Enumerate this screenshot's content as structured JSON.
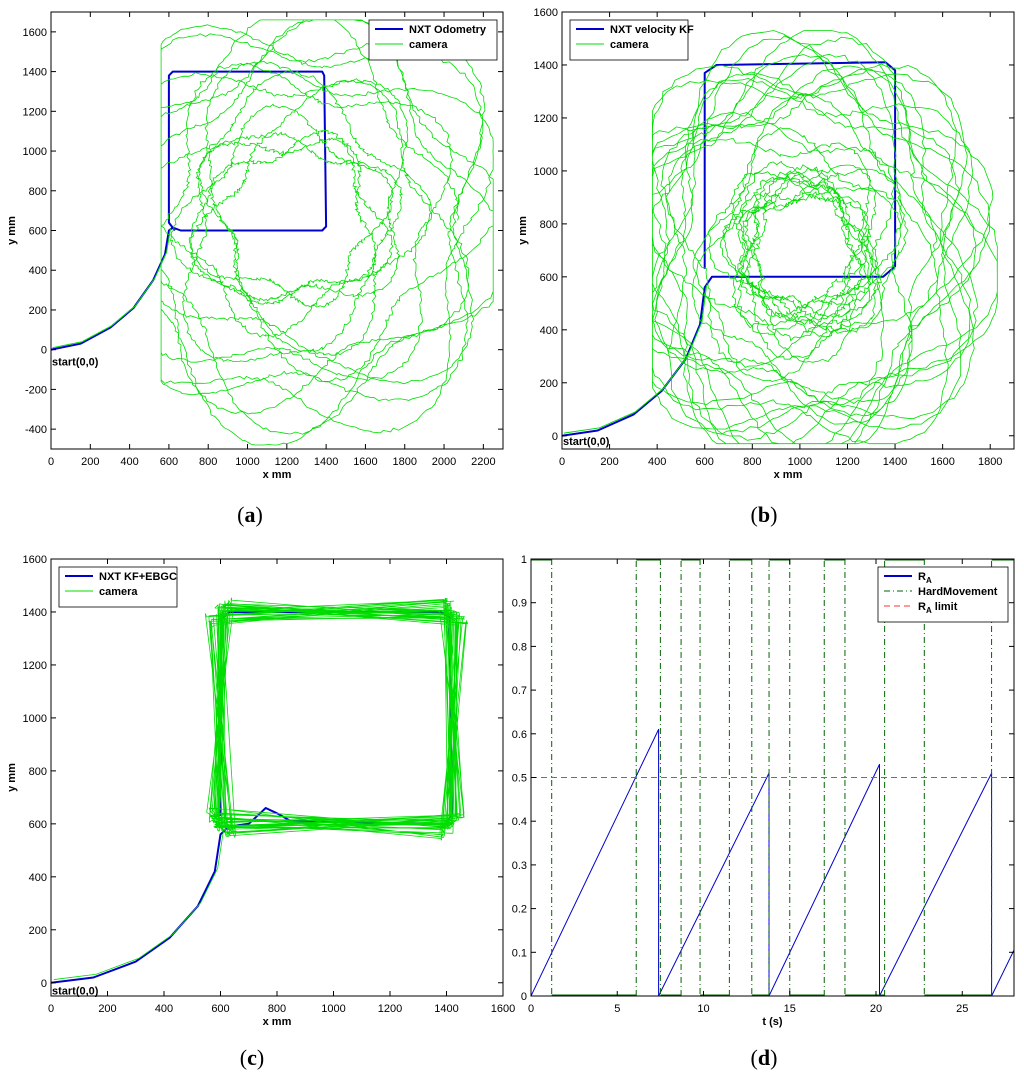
{
  "chart_data": [
    {
      "type": "line",
      "panel_label": "(a)",
      "xlabel": "x mm",
      "ylabel": "y mm",
      "xlim": [
        0,
        2300
      ],
      "ylim": [
        -500,
        1700
      ],
      "xticks": [
        0,
        200,
        400,
        600,
        800,
        1000,
        1200,
        1400,
        1600,
        1800,
        2000,
        2200
      ],
      "yticks": [
        -400,
        -200,
        0,
        200,
        400,
        600,
        800,
        1000,
        1200,
        1400,
        1600
      ],
      "legend_position": "top-right",
      "annotation": {
        "text": "start(0,0)",
        "x": 0,
        "y": -60
      },
      "series": [
        {
          "name": "NXT Odometry",
          "color": "#0000cc",
          "points": [
            [
              0,
              0
            ],
            [
              150,
              30
            ],
            [
              300,
              110
            ],
            [
              420,
              210
            ],
            [
              520,
              350
            ],
            [
              580,
              480
            ],
            [
              600,
              600
            ],
            [
              620,
              615
            ],
            [
              660,
              600
            ],
            [
              1380,
              600
            ],
            [
              1400,
              620
            ],
            [
              1390,
              1380
            ],
            [
              1380,
              1400
            ],
            [
              620,
              1400
            ],
            [
              600,
              1380
            ],
            [
              600,
              640
            ],
            [
              630,
              600
            ]
          ]
        },
        {
          "name": "camera",
          "color": "#00dd00",
          "loop": {
            "cx": 1250,
            "cy": 650,
            "rmin": 380,
            "rmax": 1000,
            "turns": 14,
            "cycles": 4,
            "xmin": 560,
            "xmax": 2250,
            "ymin": -480,
            "ymax": 1660
          }
        }
      ]
    },
    {
      "type": "line",
      "panel_label": "(b)",
      "xlabel": "x mm",
      "ylabel": "y mm",
      "xlim": [
        0,
        1900
      ],
      "ylim": [
        -50,
        1600
      ],
      "xticks": [
        0,
        200,
        400,
        600,
        800,
        1000,
        1200,
        1400,
        1600,
        1800
      ],
      "yticks": [
        0,
        200,
        400,
        600,
        800,
        1000,
        1200,
        1400,
        1600
      ],
      "legend_position": "top-left",
      "annotation": {
        "text": "start(0,0)",
        "x": 0,
        "y": -20
      },
      "series": [
        {
          "name": "NXT velocity KF",
          "color": "#0000cc",
          "points": [
            [
              0,
              0
            ],
            [
              150,
              20
            ],
            [
              300,
              80
            ],
            [
              420,
              170
            ],
            [
              520,
              290
            ],
            [
              580,
              420
            ],
            [
              600,
              560
            ],
            [
              630,
              600
            ],
            [
              680,
              600
            ],
            [
              1350,
              600
            ],
            [
              1400,
              640
            ],
            [
              1400,
              1380
            ],
            [
              1360,
              1410
            ],
            [
              650,
              1400
            ],
            [
              600,
              1370
            ],
            [
              600,
              630
            ]
          ]
        },
        {
          "name": "camera",
          "color": "#00dd00",
          "loop": {
            "cx": 1010,
            "cy": 700,
            "rmin": 220,
            "rmax": 720,
            "turns": 26,
            "cycles": 5,
            "xmin": 380,
            "xmax": 1830,
            "ymin": -30,
            "ymax": 1530
          }
        }
      ]
    },
    {
      "type": "line",
      "panel_label": "(c)",
      "xlabel": "x mm",
      "ylabel": "y mm",
      "xlim": [
        0,
        1600
      ],
      "ylim": [
        -50,
        1600
      ],
      "xticks": [
        0,
        200,
        400,
        600,
        800,
        1000,
        1200,
        1400,
        1600
      ],
      "yticks": [
        0,
        200,
        400,
        600,
        800,
        1000,
        1200,
        1400,
        1600
      ],
      "legend_position": "top-left",
      "annotation": {
        "text": "start(0,0)",
        "x": 0,
        "y": -30
      },
      "series": [
        {
          "name": "NXT KF+EBGC",
          "color": "#0000cc",
          "points": [
            [
              0,
              0
            ],
            [
              150,
              20
            ],
            [
              300,
              80
            ],
            [
              420,
              170
            ],
            [
              520,
              290
            ],
            [
              580,
              420
            ],
            [
              600,
              560
            ],
            [
              630,
              590
            ],
            [
              700,
              600
            ],
            [
              740,
              640
            ],
            [
              760,
              660
            ],
            [
              800,
              640
            ],
            [
              850,
              610
            ],
            [
              1400,
              600
            ],
            [
              1420,
              640
            ],
            [
              1410,
              1380
            ],
            [
              1380,
              1400
            ],
            [
              630,
              1400
            ],
            [
              600,
              1370
            ],
            [
              600,
              630
            ]
          ]
        },
        {
          "name": "camera",
          "color": "#00dd00",
          "square": {
            "x0": 600,
            "x1": 1420,
            "y0": 600,
            "y1": 1400,
            "loops": 30,
            "jitter": 55
          }
        }
      ]
    },
    {
      "type": "line",
      "panel_label": "(d)",
      "xlabel": "t (s)",
      "ylabel": "",
      "xlim": [
        0,
        28
      ],
      "ylim": [
        0,
        1
      ],
      "xticks": [
        0,
        5,
        10,
        15,
        20,
        25
      ],
      "yticks": [
        0,
        0.1,
        0.2,
        0.3,
        0.4,
        0.5,
        0.6,
        0.7,
        0.8,
        0.9,
        1
      ],
      "legend_position": "top-right",
      "series": [
        {
          "name": "R",
          "name_sub": "A",
          "color": "#0000cc",
          "points": [
            [
              0,
              0
            ],
            [
              7.4,
              0.61
            ],
            [
              7.4,
              0
            ],
            [
              13.8,
              0.51
            ],
            [
              13.8,
              0
            ],
            [
              20.2,
              0.53
            ],
            [
              20.2,
              0
            ],
            [
              26.7,
              0.51
            ],
            [
              26.7,
              0
            ],
            [
              28,
              0.105
            ]
          ]
        },
        {
          "name": "HardMovement",
          "color": "#006600",
          "highs": [
            [
              0,
              1.2
            ],
            [
              6.1,
              7.5
            ],
            [
              8.7,
              9.8
            ],
            [
              11.5,
              12.8
            ],
            [
              13.8,
              15.0
            ],
            [
              17.0,
              18.2
            ],
            [
              20.5,
              22.8
            ],
            [
              26.7,
              28
            ]
          ]
        },
        {
          "name": "R",
          "name_sub": "A",
          "name_tail": " limit",
          "color": "#ff3333",
          "value": 0.5
        }
      ]
    }
  ]
}
